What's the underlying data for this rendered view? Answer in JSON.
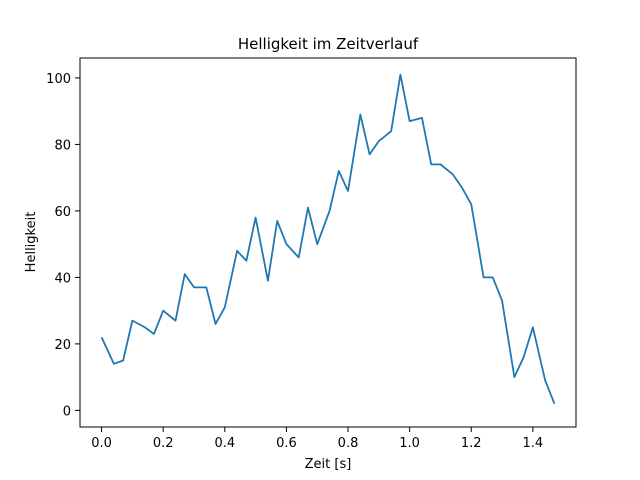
{
  "chart_data": {
    "type": "line",
    "title": "Helligkeit im Zeitverlauf",
    "xlabel": "Zeit [s]",
    "ylabel": "Helligkeit",
    "xlim": [
      -0.07,
      1.54
    ],
    "ylim": [
      -5,
      106
    ],
    "x_ticks": [
      0.0,
      0.2,
      0.4,
      0.6,
      0.8,
      1.0,
      1.2,
      1.4
    ],
    "x_tick_labels": [
      "0.0",
      "0.2",
      "0.4",
      "0.6",
      "0.8",
      "1.0",
      "1.2",
      "1.4"
    ],
    "y_ticks": [
      0,
      20,
      40,
      60,
      80,
      100
    ],
    "y_tick_labels": [
      "0",
      "20",
      "40",
      "60",
      "80",
      "100"
    ],
    "grid": false,
    "line_color": "#1f77b4",
    "series": [
      {
        "x": [
          0.0,
          0.04,
          0.07,
          0.1,
          0.14,
          0.17,
          0.2,
          0.24,
          0.27,
          0.3,
          0.34,
          0.37,
          0.4,
          0.44,
          0.47,
          0.5,
          0.54,
          0.57,
          0.6,
          0.64,
          0.67,
          0.7,
          0.74,
          0.77,
          0.8,
          0.84,
          0.87,
          0.9,
          0.94,
          0.97,
          1.0,
          1.04,
          1.07,
          1.1,
          1.14,
          1.17,
          1.2,
          1.24,
          1.27,
          1.3,
          1.34,
          1.37,
          1.4,
          1.44,
          1.47
        ],
        "y": [
          22,
          14,
          15,
          27,
          25,
          23,
          30,
          27,
          41,
          37,
          37,
          26,
          31,
          48,
          45,
          58,
          39,
          57,
          50,
          46,
          61,
          50,
          60,
          72,
          66,
          89,
          77,
          81,
          84,
          101,
          87,
          88,
          74,
          74,
          71,
          67,
          62,
          40,
          40,
          33,
          10,
          16,
          25,
          9,
          2
        ]
      }
    ]
  }
}
